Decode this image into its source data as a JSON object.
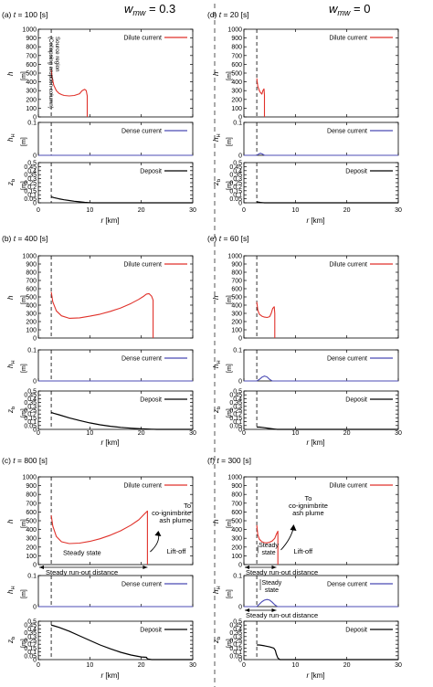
{
  "columns": [
    {
      "label": "w",
      "sub": "mw",
      "value": "= 0.3"
    },
    {
      "label": "w",
      "sub": "mw",
      "value": "= 0"
    }
  ],
  "colors": {
    "dilute": "#e0312a",
    "dense": "#4b4bb4",
    "deposit": "#000000"
  },
  "x_axis": {
    "label": "r",
    "unit": "[km]",
    "ticks": [
      0,
      10,
      20,
      30
    ],
    "range": [
      0,
      30
    ]
  },
  "y_axes": {
    "h": {
      "label": "h",
      "unit": "[m]",
      "ticks": [
        0,
        100,
        200,
        300,
        400,
        500,
        600,
        700,
        800,
        900,
        1000
      ],
      "range": [
        0,
        1000
      ]
    },
    "hH": {
      "label": "h",
      "sub": "H",
      "unit": "[m]",
      "ticks": [
        0,
        0.1
      ],
      "range": [
        0,
        0.1
      ]
    },
    "zb": {
      "label": "z",
      "sub": "b",
      "unit": "[m]",
      "ticks": [
        0,
        0.05,
        0.1,
        0.15,
        0.2,
        0.25,
        0.3,
        0.35,
        0.4,
        0.45,
        0.5
      ],
      "range": [
        0,
        0.5
      ]
    }
  },
  "source_region_label": [
    "Source region",
    "(Collapsing eruption column)"
  ],
  "chart_data": [
    {
      "type": "line",
      "panel": "(a)",
      "time": "t = 100 [s]",
      "title_parts": {
        "letter": "(a) ",
        "t": "t",
        "rest": " = 100 [s]"
      },
      "source_r": 2.5,
      "subplots": [
        {
          "name": "Dilute current",
          "y_axis": "h",
          "x": [
            2.5,
            2.7,
            3,
            3.5,
            4,
            4.5,
            5,
            6,
            7,
            8,
            8.5,
            9,
            9.3,
            9.5,
            9.5
          ],
          "y": [
            540,
            440,
            360,
            300,
            270,
            255,
            245,
            240,
            245,
            265,
            300,
            315,
            300,
            240,
            0
          ]
        },
        {
          "name": "Dense current",
          "y_axis": "hH",
          "x": [
            0,
            30
          ],
          "y": [
            0,
            0
          ]
        },
        {
          "name": "Deposit",
          "y_axis": "zb",
          "x": [
            2.5,
            3,
            4,
            5,
            6,
            7,
            8,
            9,
            10,
            10.5,
            30
          ],
          "y": [
            0.075,
            0.065,
            0.05,
            0.038,
            0.028,
            0.019,
            0.012,
            0.006,
            0.002,
            0,
            0
          ]
        }
      ]
    },
    {
      "type": "line",
      "panel": "(b)",
      "time": "t = 400 [s]",
      "title_parts": {
        "letter": "(b) ",
        "t": "t",
        "rest": " = 400 [s]"
      },
      "source_r": 2.5,
      "subplots": [
        {
          "name": "Dilute current",
          "y_axis": "h",
          "x": [
            2.5,
            2.8,
            3.5,
            4.5,
            6,
            8,
            10,
            12,
            14,
            16,
            18,
            19.5,
            20.5,
            21,
            21.5,
            22,
            22.3,
            22.3
          ],
          "y": [
            560,
            440,
            330,
            270,
            240,
            245,
            265,
            290,
            325,
            365,
            420,
            470,
            510,
            535,
            540,
            510,
            460,
            0
          ]
        },
        {
          "name": "Dense current",
          "y_axis": "hH",
          "x": [
            0,
            30
          ],
          "y": [
            0,
            0
          ]
        },
        {
          "name": "Deposit",
          "y_axis": "zb",
          "x": [
            2.5,
            3,
            4,
            6,
            8,
            10,
            12,
            14,
            16,
            18,
            20,
            22,
            23,
            30
          ],
          "y": [
            0.22,
            0.21,
            0.19,
            0.15,
            0.115,
            0.085,
            0.06,
            0.04,
            0.026,
            0.015,
            0.007,
            0.002,
            0,
            0
          ]
        }
      ]
    },
    {
      "type": "line",
      "panel": "(c)",
      "time": "t = 800 [s]",
      "title_parts": {
        "letter": "(c) ",
        "t": "t",
        "rest": " = 800 [s]"
      },
      "source_r": 2.5,
      "subplots": [
        {
          "name": "Dilute current",
          "y_axis": "h",
          "x": [
            2.5,
            2.8,
            3.5,
            4.5,
            6,
            8,
            10,
            12,
            14,
            16,
            18,
            19.5,
            20.5,
            21.2,
            21.2
          ],
          "y": [
            560,
            440,
            320,
            260,
            240,
            245,
            265,
            295,
            335,
            385,
            450,
            510,
            570,
            610,
            0
          ]
        },
        {
          "name": "Dense current",
          "y_axis": "hH",
          "x": [
            0,
            30
          ],
          "y": [
            0,
            0
          ]
        },
        {
          "name": "Deposit",
          "y_axis": "zb",
          "x": [
            2.5,
            3,
            4,
            6,
            8,
            10,
            12,
            14,
            16,
            18,
            20,
            21,
            21.2,
            22,
            30
          ],
          "y": [
            0.45,
            0.44,
            0.42,
            0.37,
            0.31,
            0.25,
            0.19,
            0.14,
            0.095,
            0.06,
            0.035,
            0.03,
            0.01,
            0,
            0
          ]
        }
      ],
      "annotations": {
        "steady_state": "Steady state",
        "runout": "Steady run-out distance",
        "runout_range": [
          0,
          21.2
        ],
        "plume": [
          "To",
          "co-ignimbrite",
          "ash plume"
        ],
        "liftoff": "Lift-off"
      }
    },
    {
      "type": "line",
      "panel": "(d)",
      "time": "t = 20 [s]",
      "title_parts": {
        "letter": "(d) ",
        "t": "t",
        "rest": " = 20 [s]"
      },
      "source_r": 2.5,
      "subplots": [
        {
          "name": "Dilute current",
          "y_axis": "h",
          "x": [
            2.5,
            2.7,
            3,
            3.2,
            3.5,
            3.7,
            3.9,
            4,
            4
          ],
          "y": [
            440,
            350,
            300,
            280,
            260,
            300,
            320,
            250,
            0
          ]
        },
        {
          "name": "Dense current",
          "y_axis": "hH",
          "x": [
            0,
            2.5,
            2.8,
            3.2,
            3.6,
            4,
            30
          ],
          "y": [
            0,
            0,
            0.003,
            0.006,
            0.004,
            0,
            0
          ]
        },
        {
          "name": "Deposit",
          "y_axis": "zb",
          "x": [
            2.5,
            2.8,
            3.2,
            3.6,
            4,
            30
          ],
          "y": [
            0.012,
            0.009,
            0.005,
            0.002,
            0,
            0
          ]
        }
      ]
    },
    {
      "type": "line",
      "panel": "(e)",
      "time": "t = 60 [s]",
      "title_parts": {
        "letter": "(e) ",
        "t": "t",
        "rest": " = 60 [s]"
      },
      "source_r": 2.5,
      "subplots": [
        {
          "name": "Dilute current",
          "y_axis": "h",
          "x": [
            2.5,
            2.7,
            3,
            3.5,
            4,
            4.5,
            5,
            5.3,
            5.6,
            5.9,
            6,
            6
          ],
          "y": [
            440,
            340,
            290,
            265,
            255,
            250,
            260,
            300,
            360,
            380,
            300,
            0
          ]
        },
        {
          "name": "Dense current",
          "y_axis": "hH",
          "x": [
            0,
            2.5,
            3,
            3.5,
            4,
            4.5,
            5,
            5.5,
            30
          ],
          "y": [
            0,
            0,
            0.005,
            0.012,
            0.016,
            0.013,
            0.005,
            0,
            0
          ]
        },
        {
          "name": "Deposit",
          "y_axis": "zb",
          "x": [
            2.5,
            3,
            3.5,
            4,
            5,
            6,
            6.5,
            30
          ],
          "y": [
            0.03,
            0.03,
            0.026,
            0.022,
            0.012,
            0.003,
            0,
            0
          ]
        }
      ]
    },
    {
      "type": "line",
      "panel": "(f)",
      "time": "t = 300 [s]",
      "title_parts": {
        "letter": "(f) ",
        "t": "t",
        "rest": " = 300 [s]"
      },
      "source_r": 2.5,
      "subplots": [
        {
          "name": "Dilute current",
          "y_axis": "h",
          "x": [
            2.5,
            2.7,
            3,
            3.5,
            4,
            4.5,
            5,
            5.5,
            6,
            6.3,
            6.6,
            6.6
          ],
          "y": [
            450,
            340,
            290,
            260,
            250,
            248,
            255,
            270,
            300,
            345,
            380,
            0
          ]
        },
        {
          "name": "Dense current",
          "y_axis": "hH",
          "x": [
            0,
            2.5,
            3,
            3.5,
            4,
            4.5,
            5,
            5.5,
            6,
            6.5,
            30
          ],
          "y": [
            0,
            0,
            0.008,
            0.016,
            0.021,
            0.023,
            0.021,
            0.014,
            0.006,
            0,
            0
          ]
        },
        {
          "name": "Deposit",
          "y_axis": "zb",
          "x": [
            2.5,
            3,
            4,
            5,
            5.8,
            6.1,
            6.3,
            6.6,
            7,
            30
          ],
          "y": [
            0.19,
            0.19,
            0.18,
            0.165,
            0.15,
            0.12,
            0.07,
            0.02,
            0,
            0
          ]
        }
      ],
      "annotations": {
        "steady_state": [
          "Steady",
          "state"
        ],
        "runout": "Steady run-out distance",
        "runout_range": [
          0,
          6.3
        ],
        "steady_state_h": [
          "Steady",
          "state"
        ],
        "runout_h": "Steady run-out distance",
        "plume": [
          "To",
          "co-ignimbrite",
          "ash plume"
        ],
        "liftoff": "Lift-off"
      }
    }
  ]
}
